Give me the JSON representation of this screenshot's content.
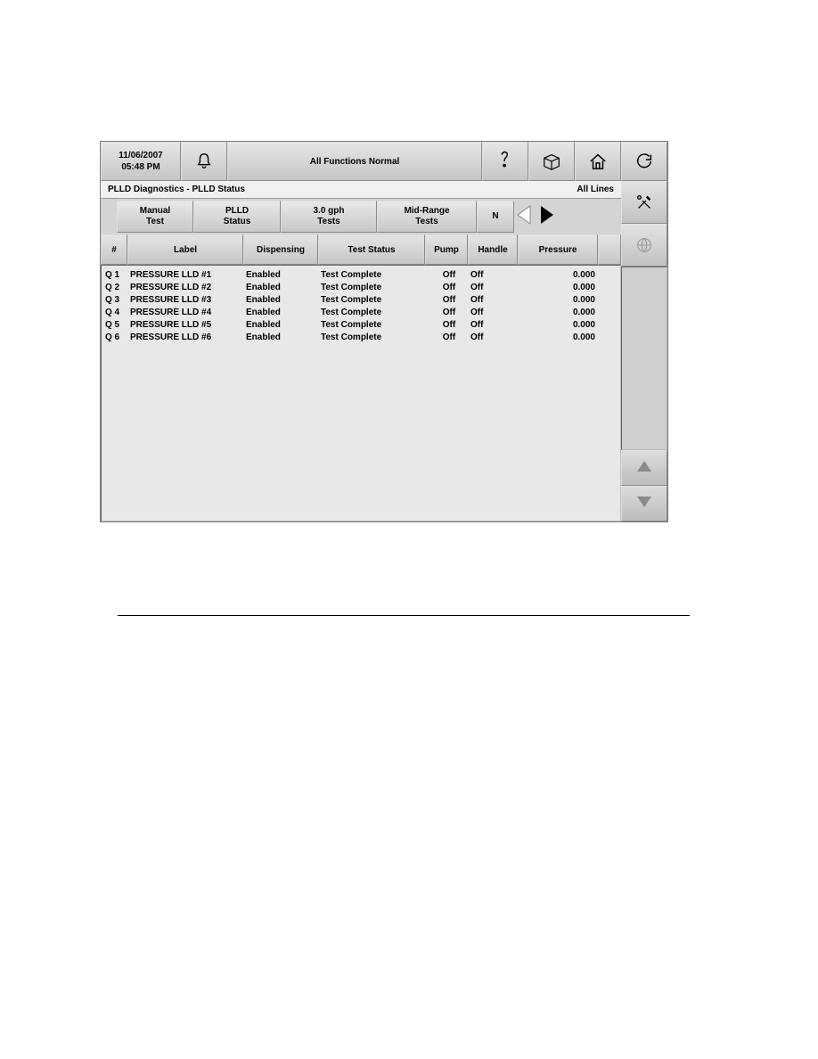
{
  "header": {
    "date": "11/06/2007",
    "time": "05:48 PM",
    "status_text": "All Functions Normal"
  },
  "title": {
    "left": "PLLD Diagnostics - PLLD Status",
    "right": "All Lines"
  },
  "tabs": [
    {
      "line1": "Manual",
      "line2": "Test"
    },
    {
      "line1": "PLLD",
      "line2": "Status"
    },
    {
      "line1": "3.0 gph",
      "line2": "Tests"
    },
    {
      "line1": "Mid-Range",
      "line2": "Tests"
    },
    {
      "line1": "N",
      "line2": ""
    }
  ],
  "columns": {
    "num": "#",
    "label": "Label",
    "dispensing": "Dispensing",
    "test_status": "Test Status",
    "pump": "Pump",
    "handle": "Handle",
    "pressure": "Pressure"
  },
  "rows": [
    {
      "num": "Q 1",
      "label": "PRESSURE LLD #1",
      "disp": "Enabled",
      "test": "Test Complete",
      "pump": "Off",
      "handle": "Off",
      "press": "0.000"
    },
    {
      "num": "Q 2",
      "label": "PRESSURE LLD #2",
      "disp": "Enabled",
      "test": "Test Complete",
      "pump": "Off",
      "handle": "Off",
      "press": "0.000"
    },
    {
      "num": "Q 3",
      "label": "PRESSURE LLD #3",
      "disp": "Enabled",
      "test": "Test Complete",
      "pump": "Off",
      "handle": "Off",
      "press": "0.000"
    },
    {
      "num": "Q 4",
      "label": "PRESSURE LLD #4",
      "disp": "Enabled",
      "test": "Test Complete",
      "pump": "Off",
      "handle": "Off",
      "press": "0.000"
    },
    {
      "num": "Q 5",
      "label": "PRESSURE LLD #5",
      "disp": "Enabled",
      "test": "Test Complete",
      "pump": "Off",
      "handle": "Off",
      "press": "0.000"
    },
    {
      "num": "Q 6",
      "label": "PRESSURE LLD #6",
      "disp": "Enabled",
      "test": "Test Complete",
      "pump": "Off",
      "handle": "Off",
      "press": "0.000"
    }
  ],
  "colors": {
    "panel_bg": "#e8e8e8",
    "button_light": "#e6e6e6",
    "button_dark": "#c6c6c6",
    "border": "#7a7a7a",
    "arrow_inactive": "#cccccc",
    "arrow_active": "#000000",
    "side_arrow": "#888888"
  }
}
